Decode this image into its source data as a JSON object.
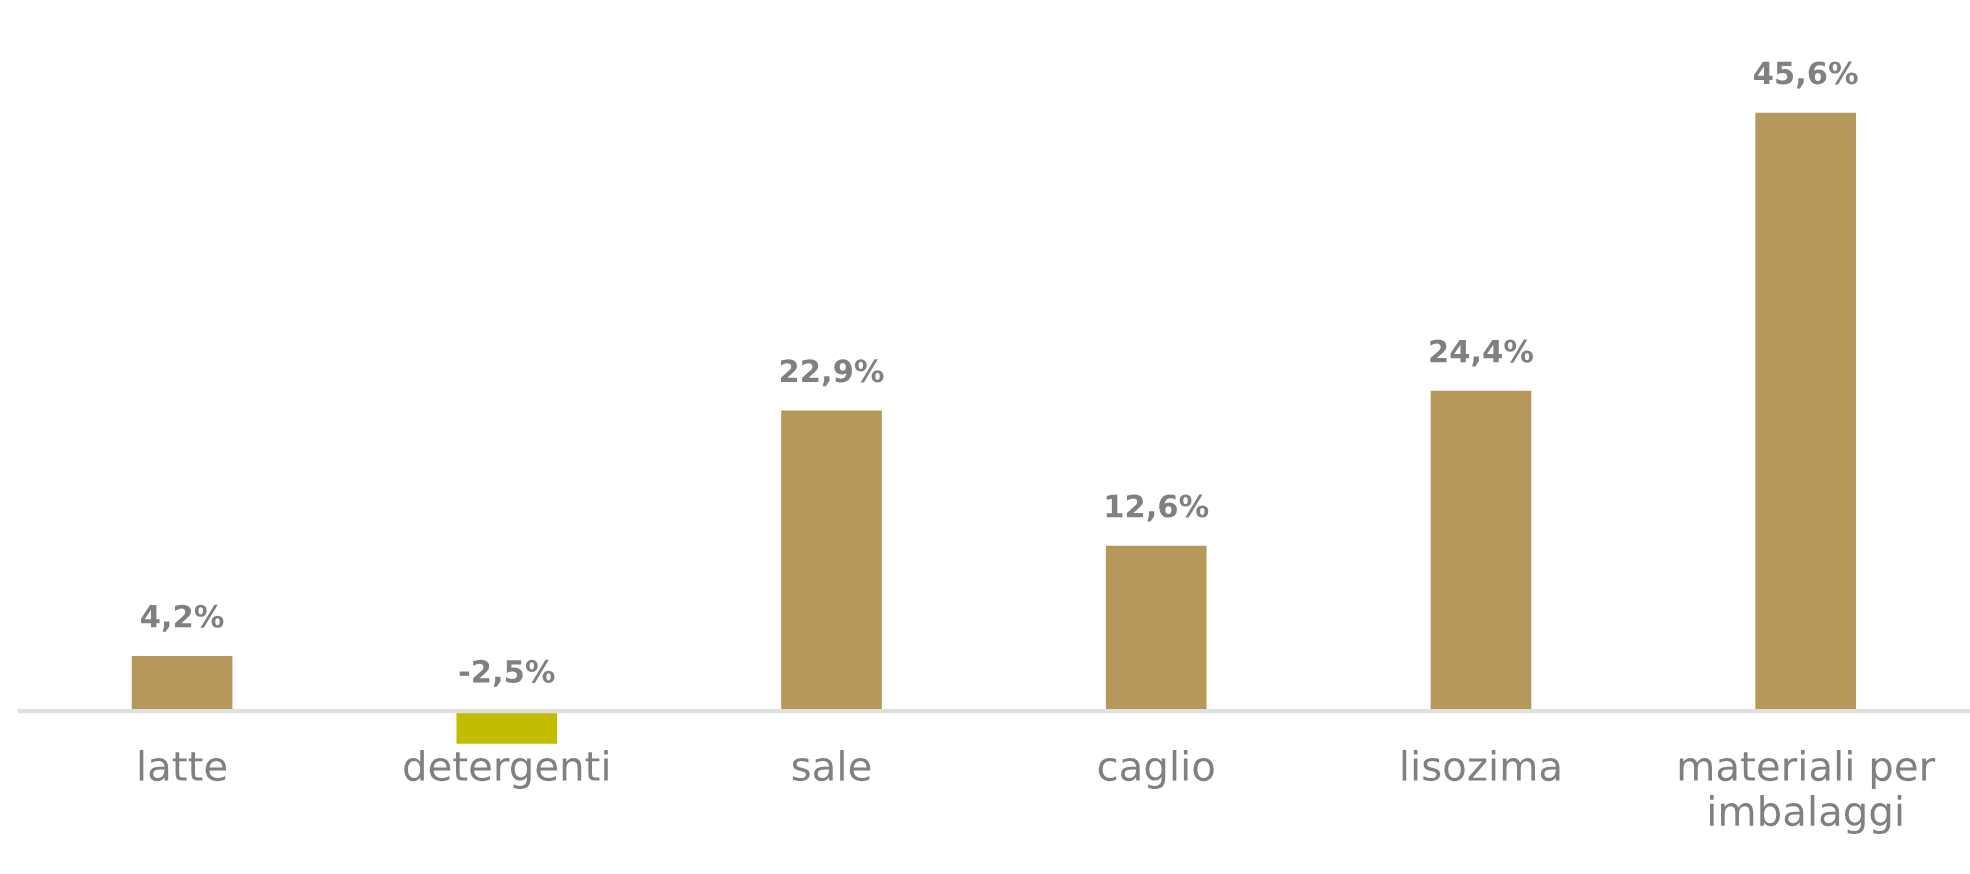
{
  "chart_data": {
    "type": "bar",
    "categories": [
      "latte",
      "detergenti",
      "sale",
      "caglio",
      "lisozima",
      "materiali per\nimbalaggi"
    ],
    "values": [
      4.2,
      -2.5,
      22.9,
      12.6,
      24.4,
      45.6
    ],
    "colors": [
      "#b5985a",
      "#c2bd00",
      "#b5985a",
      "#b5985a",
      "#b5985a",
      "#b5985a"
    ],
    "value_labels": [
      "4,2%",
      "-2,5%",
      "22,9%",
      "12,6%",
      "24,4%",
      "45,6%"
    ],
    "grid": false,
    "legend": false
  }
}
